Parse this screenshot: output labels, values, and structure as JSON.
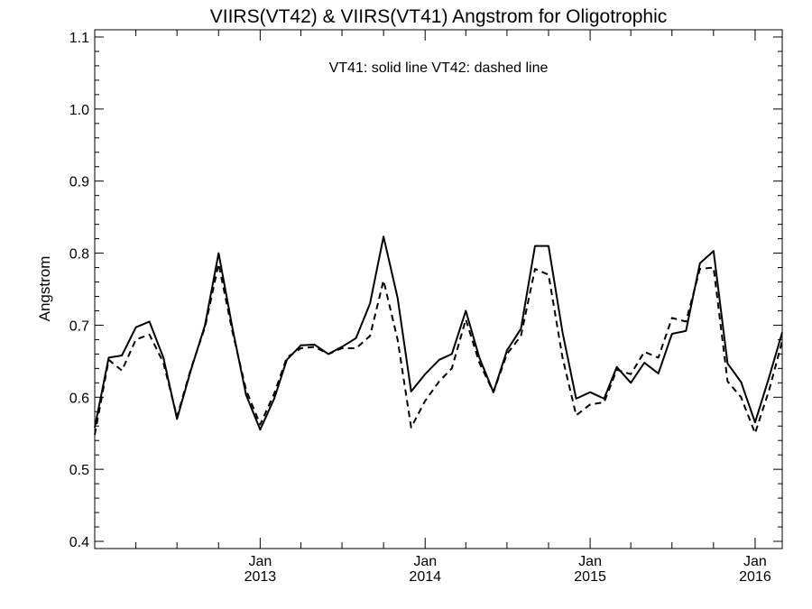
{
  "chart_data": {
    "type": "line",
    "title": "VIIRS(VT42) & VIIRS(VT41)  Angstrom for Oligotrophic",
    "annotation": "VT41: solid line   VT42: dashed line",
    "xlabel": "",
    "ylabel": "Angstrom",
    "ylim": [
      0.39,
      1.11
    ],
    "xlim": [
      "2012-01-01",
      "2016-03-01"
    ],
    "y_ticks": [
      "0.4",
      "0.5",
      "0.6",
      "0.7",
      "0.8",
      "0.9",
      "1.0",
      "1.1"
    ],
    "x_ticks": [
      {
        "month": "Jan",
        "year": "2013",
        "date": "2013-01-01"
      },
      {
        "month": "Jan",
        "year": "2014",
        "date": "2014-01-01"
      },
      {
        "month": "Jan",
        "year": "2015",
        "date": "2015-01-01"
      },
      {
        "month": "Jan",
        "year": "2016",
        "date": "2016-01-01"
      }
    ],
    "x_minor_tick_months": 3,
    "grid": false,
    "colors": {
      "line": "#000000",
      "axis": "#000000",
      "background": "#ffffff"
    },
    "series": [
      {
        "name": "VT41",
        "style": "solid",
        "points": [
          [
            "2012-01-01",
            0.558
          ],
          [
            "2012-02-01",
            0.655
          ],
          [
            "2012-03-01",
            0.658
          ],
          [
            "2012-04-01",
            0.697
          ],
          [
            "2012-05-01",
            0.705
          ],
          [
            "2012-06-01",
            0.655
          ],
          [
            "2012-07-01",
            0.57
          ],
          [
            "2012-08-01",
            0.638
          ],
          [
            "2012-09-01",
            0.7
          ],
          [
            "2012-10-01",
            0.8
          ],
          [
            "2012-11-01",
            0.695
          ],
          [
            "2012-12-01",
            0.603
          ],
          [
            "2013-01-01",
            0.555
          ],
          [
            "2013-02-01",
            0.598
          ],
          [
            "2013-03-01",
            0.652
          ],
          [
            "2013-04-01",
            0.672
          ],
          [
            "2013-05-01",
            0.673
          ],
          [
            "2013-06-01",
            0.66
          ],
          [
            "2013-07-01",
            0.67
          ],
          [
            "2013-08-01",
            0.682
          ],
          [
            "2013-09-01",
            0.73
          ],
          [
            "2013-10-01",
            0.823
          ],
          [
            "2013-11-01",
            0.738
          ],
          [
            "2013-12-01",
            0.608
          ],
          [
            "2014-01-01",
            0.632
          ],
          [
            "2014-02-01",
            0.652
          ],
          [
            "2014-03-01",
            0.66
          ],
          [
            "2014-04-01",
            0.72
          ],
          [
            "2014-05-01",
            0.655
          ],
          [
            "2014-06-01",
            0.607
          ],
          [
            "2014-07-01",
            0.665
          ],
          [
            "2014-08-01",
            0.695
          ],
          [
            "2014-09-01",
            0.81
          ],
          [
            "2014-10-01",
            0.81
          ],
          [
            "2014-11-01",
            0.69
          ],
          [
            "2014-12-01",
            0.598
          ],
          [
            "2015-01-01",
            0.607
          ],
          [
            "2015-02-01",
            0.598
          ],
          [
            "2015-03-01",
            0.642
          ],
          [
            "2015-04-01",
            0.62
          ],
          [
            "2015-05-01",
            0.648
          ],
          [
            "2015-06-01",
            0.633
          ],
          [
            "2015-07-01",
            0.688
          ],
          [
            "2015-08-01",
            0.692
          ],
          [
            "2015-09-01",
            0.786
          ],
          [
            "2015-10-01",
            0.803
          ],
          [
            "2015-11-01",
            0.647
          ],
          [
            "2015-12-01",
            0.621
          ],
          [
            "2016-01-01",
            0.565
          ],
          [
            "2016-02-01",
            0.628
          ],
          [
            "2016-03-01",
            0.69
          ]
        ]
      },
      {
        "name": "VT42",
        "style": "dashed",
        "points": [
          [
            "2012-01-01",
            0.548
          ],
          [
            "2012-02-01",
            0.652
          ],
          [
            "2012-03-01",
            0.637
          ],
          [
            "2012-04-01",
            0.68
          ],
          [
            "2012-05-01",
            0.687
          ],
          [
            "2012-06-01",
            0.648
          ],
          [
            "2012-07-01",
            0.573
          ],
          [
            "2012-08-01",
            0.64
          ],
          [
            "2012-09-01",
            0.697
          ],
          [
            "2012-10-01",
            0.785
          ],
          [
            "2012-11-01",
            0.69
          ],
          [
            "2012-12-01",
            0.61
          ],
          [
            "2013-01-01",
            0.562
          ],
          [
            "2013-02-01",
            0.605
          ],
          [
            "2013-03-01",
            0.655
          ],
          [
            "2013-04-01",
            0.668
          ],
          [
            "2013-05-01",
            0.67
          ],
          [
            "2013-06-01",
            0.66
          ],
          [
            "2013-07-01",
            0.668
          ],
          [
            "2013-08-01",
            0.668
          ],
          [
            "2013-09-01",
            0.685
          ],
          [
            "2013-10-01",
            0.762
          ],
          [
            "2013-11-01",
            0.68
          ],
          [
            "2013-12-01",
            0.558
          ],
          [
            "2014-01-01",
            0.595
          ],
          [
            "2014-02-01",
            0.622
          ],
          [
            "2014-03-01",
            0.64
          ],
          [
            "2014-04-01",
            0.708
          ],
          [
            "2014-05-01",
            0.648
          ],
          [
            "2014-06-01",
            0.607
          ],
          [
            "2014-07-01",
            0.66
          ],
          [
            "2014-08-01",
            0.685
          ],
          [
            "2014-09-01",
            0.778
          ],
          [
            "2014-10-01",
            0.77
          ],
          [
            "2014-11-01",
            0.655
          ],
          [
            "2014-12-01",
            0.575
          ],
          [
            "2015-01-01",
            0.59
          ],
          [
            "2015-02-01",
            0.593
          ],
          [
            "2015-03-01",
            0.638
          ],
          [
            "2015-04-01",
            0.632
          ],
          [
            "2015-05-01",
            0.663
          ],
          [
            "2015-06-01",
            0.655
          ],
          [
            "2015-07-01",
            0.71
          ],
          [
            "2015-08-01",
            0.705
          ],
          [
            "2015-09-01",
            0.778
          ],
          [
            "2015-10-01",
            0.78
          ],
          [
            "2015-11-01",
            0.622
          ],
          [
            "2015-12-01",
            0.6
          ],
          [
            "2016-01-01",
            0.55
          ],
          [
            "2016-02-01",
            0.61
          ],
          [
            "2016-03-01",
            0.678
          ]
        ]
      }
    ]
  }
}
